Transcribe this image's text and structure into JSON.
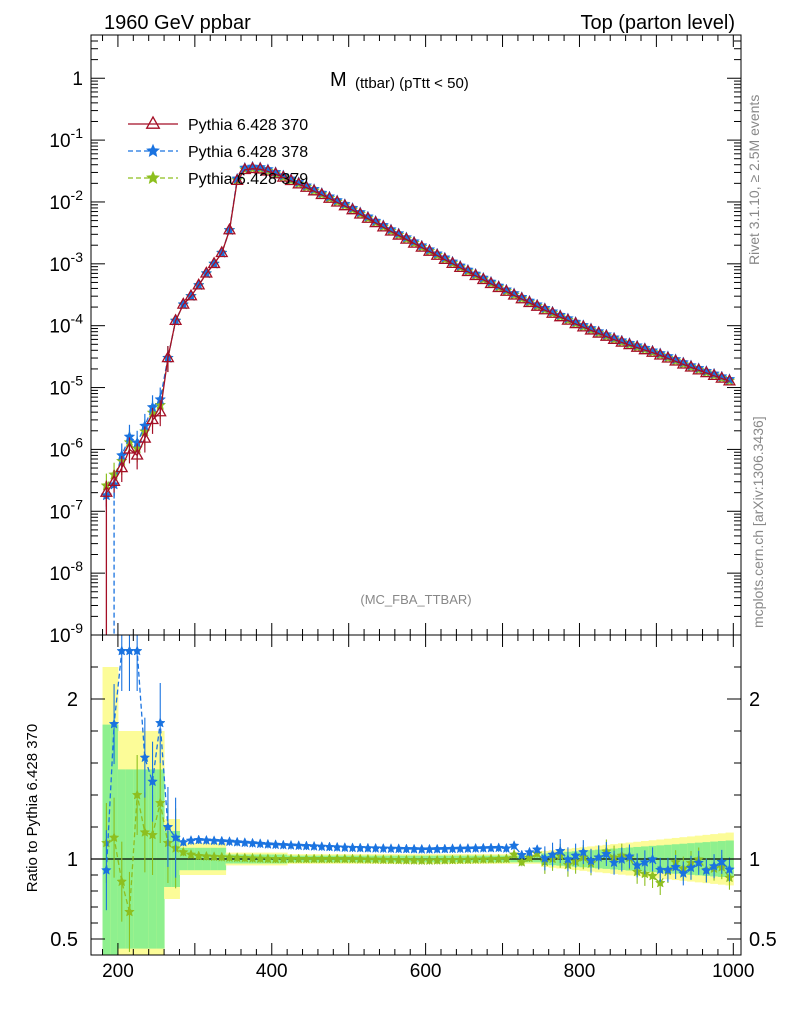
{
  "header": {
    "left": "1960 GeV ppbar",
    "right": "Top (parton level)"
  },
  "side": {
    "rivet": "Rivet 3.1.10, ≥ 2.5M events",
    "mcplots": "mcplots.cern.ch [arXiv:1306.3436]"
  },
  "chart_data": {
    "type": "line",
    "title_main": "M",
    "title_sub": "(ttbar) (pTtt < 50)",
    "analysis": "(MC_FBA_TTBAR)",
    "xlabel": "",
    "ylabel_ratio": "Ratio to Pythia 6.428 370",
    "xlim": [
      165,
      1010
    ],
    "ylim_log": [
      1e-09,
      5
    ],
    "ratio_ylim": [
      0.4,
      2.4
    ],
    "x_ticks": [
      "200",
      "400",
      "600",
      "800",
      "1000"
    ],
    "y_ticks": [
      "1",
      "10^-1",
      "10^-2",
      "10^-3",
      "10^-4",
      "10^-5",
      "10^-6",
      "10^-7",
      "10^-8",
      "10^-9"
    ],
    "ratio_ticks": [
      "0.5",
      "1",
      "2"
    ],
    "grid": false,
    "legend_position": "top-left",
    "colors": {
      "s370": "#a50f26",
      "s378": "#1a73e0",
      "s379": "#8dbf1f",
      "band_inner": "#8ef08e",
      "band_outer": "#fcfc98"
    },
    "series": [
      {
        "name": "Pythia 6.428 370",
        "marker": "triangle",
        "style": "solid"
      },
      {
        "name": "Pythia 6.428 378",
        "marker": "star",
        "style": "dashed"
      },
      {
        "name": "Pythia 6.428 379",
        "marker": "star",
        "style": "dashed"
      }
    ],
    "main_curve": {
      "x": [
        185,
        195,
        205,
        215,
        225,
        235,
        245,
        255,
        265,
        275,
        285,
        295,
        305,
        315,
        325,
        335,
        345,
        355,
        365,
        380,
        400,
        450,
        500,
        550,
        600,
        650,
        700,
        750,
        800,
        850,
        900,
        950,
        1000
      ],
      "y": [
        2e-07,
        3e-07,
        5e-07,
        1e-06,
        8e-07,
        1.5e-06,
        3e-06,
        4e-06,
        3e-05,
        0.00012,
        0.00022,
        0.0003,
        0.00045,
        0.0007,
        0.001,
        0.0015,
        0.0035,
        0.022,
        0.033,
        0.035,
        0.03,
        0.016,
        0.008,
        0.0036,
        0.0017,
        0.0008,
        0.00038,
        0.00019,
        0.0001,
        5.6e-05,
        3.5e-05,
        2e-05,
        1.2e-05
      ]
    },
    "ratio_378": {
      "x": [
        185,
        200,
        212,
        225,
        240,
        255,
        265,
        280,
        300,
        340,
        400,
        500,
        600,
        700,
        750,
        800,
        850,
        900,
        920,
        950,
        1000
      ],
      "y": [
        0.93,
        2.3,
        2.3,
        2.3,
        1.3,
        1.85,
        1.2,
        1.1,
        1.12,
        1.11,
        1.09,
        1.07,
        1.06,
        1.07,
        1.03,
        1.02,
        1.0,
        0.97,
        0.92,
        0.95,
        0.96
      ]
    },
    "ratio_379": {
      "x": [
        185,
        200,
        212,
        225,
        240,
        255,
        265,
        280,
        300,
        340,
        400,
        500,
        600,
        700,
        750,
        800,
        850,
        900,
        920,
        950,
        1000
      ],
      "y": [
        1.1,
        1.15,
        0.45,
        1.4,
        1.05,
        1.35,
        1.1,
        1.05,
        1.02,
        1.01,
        1.0,
        1.0,
        0.99,
        1.0,
        1.01,
        0.98,
        1.04,
        0.85,
        0.95,
        0.98,
        0.9
      ]
    }
  }
}
